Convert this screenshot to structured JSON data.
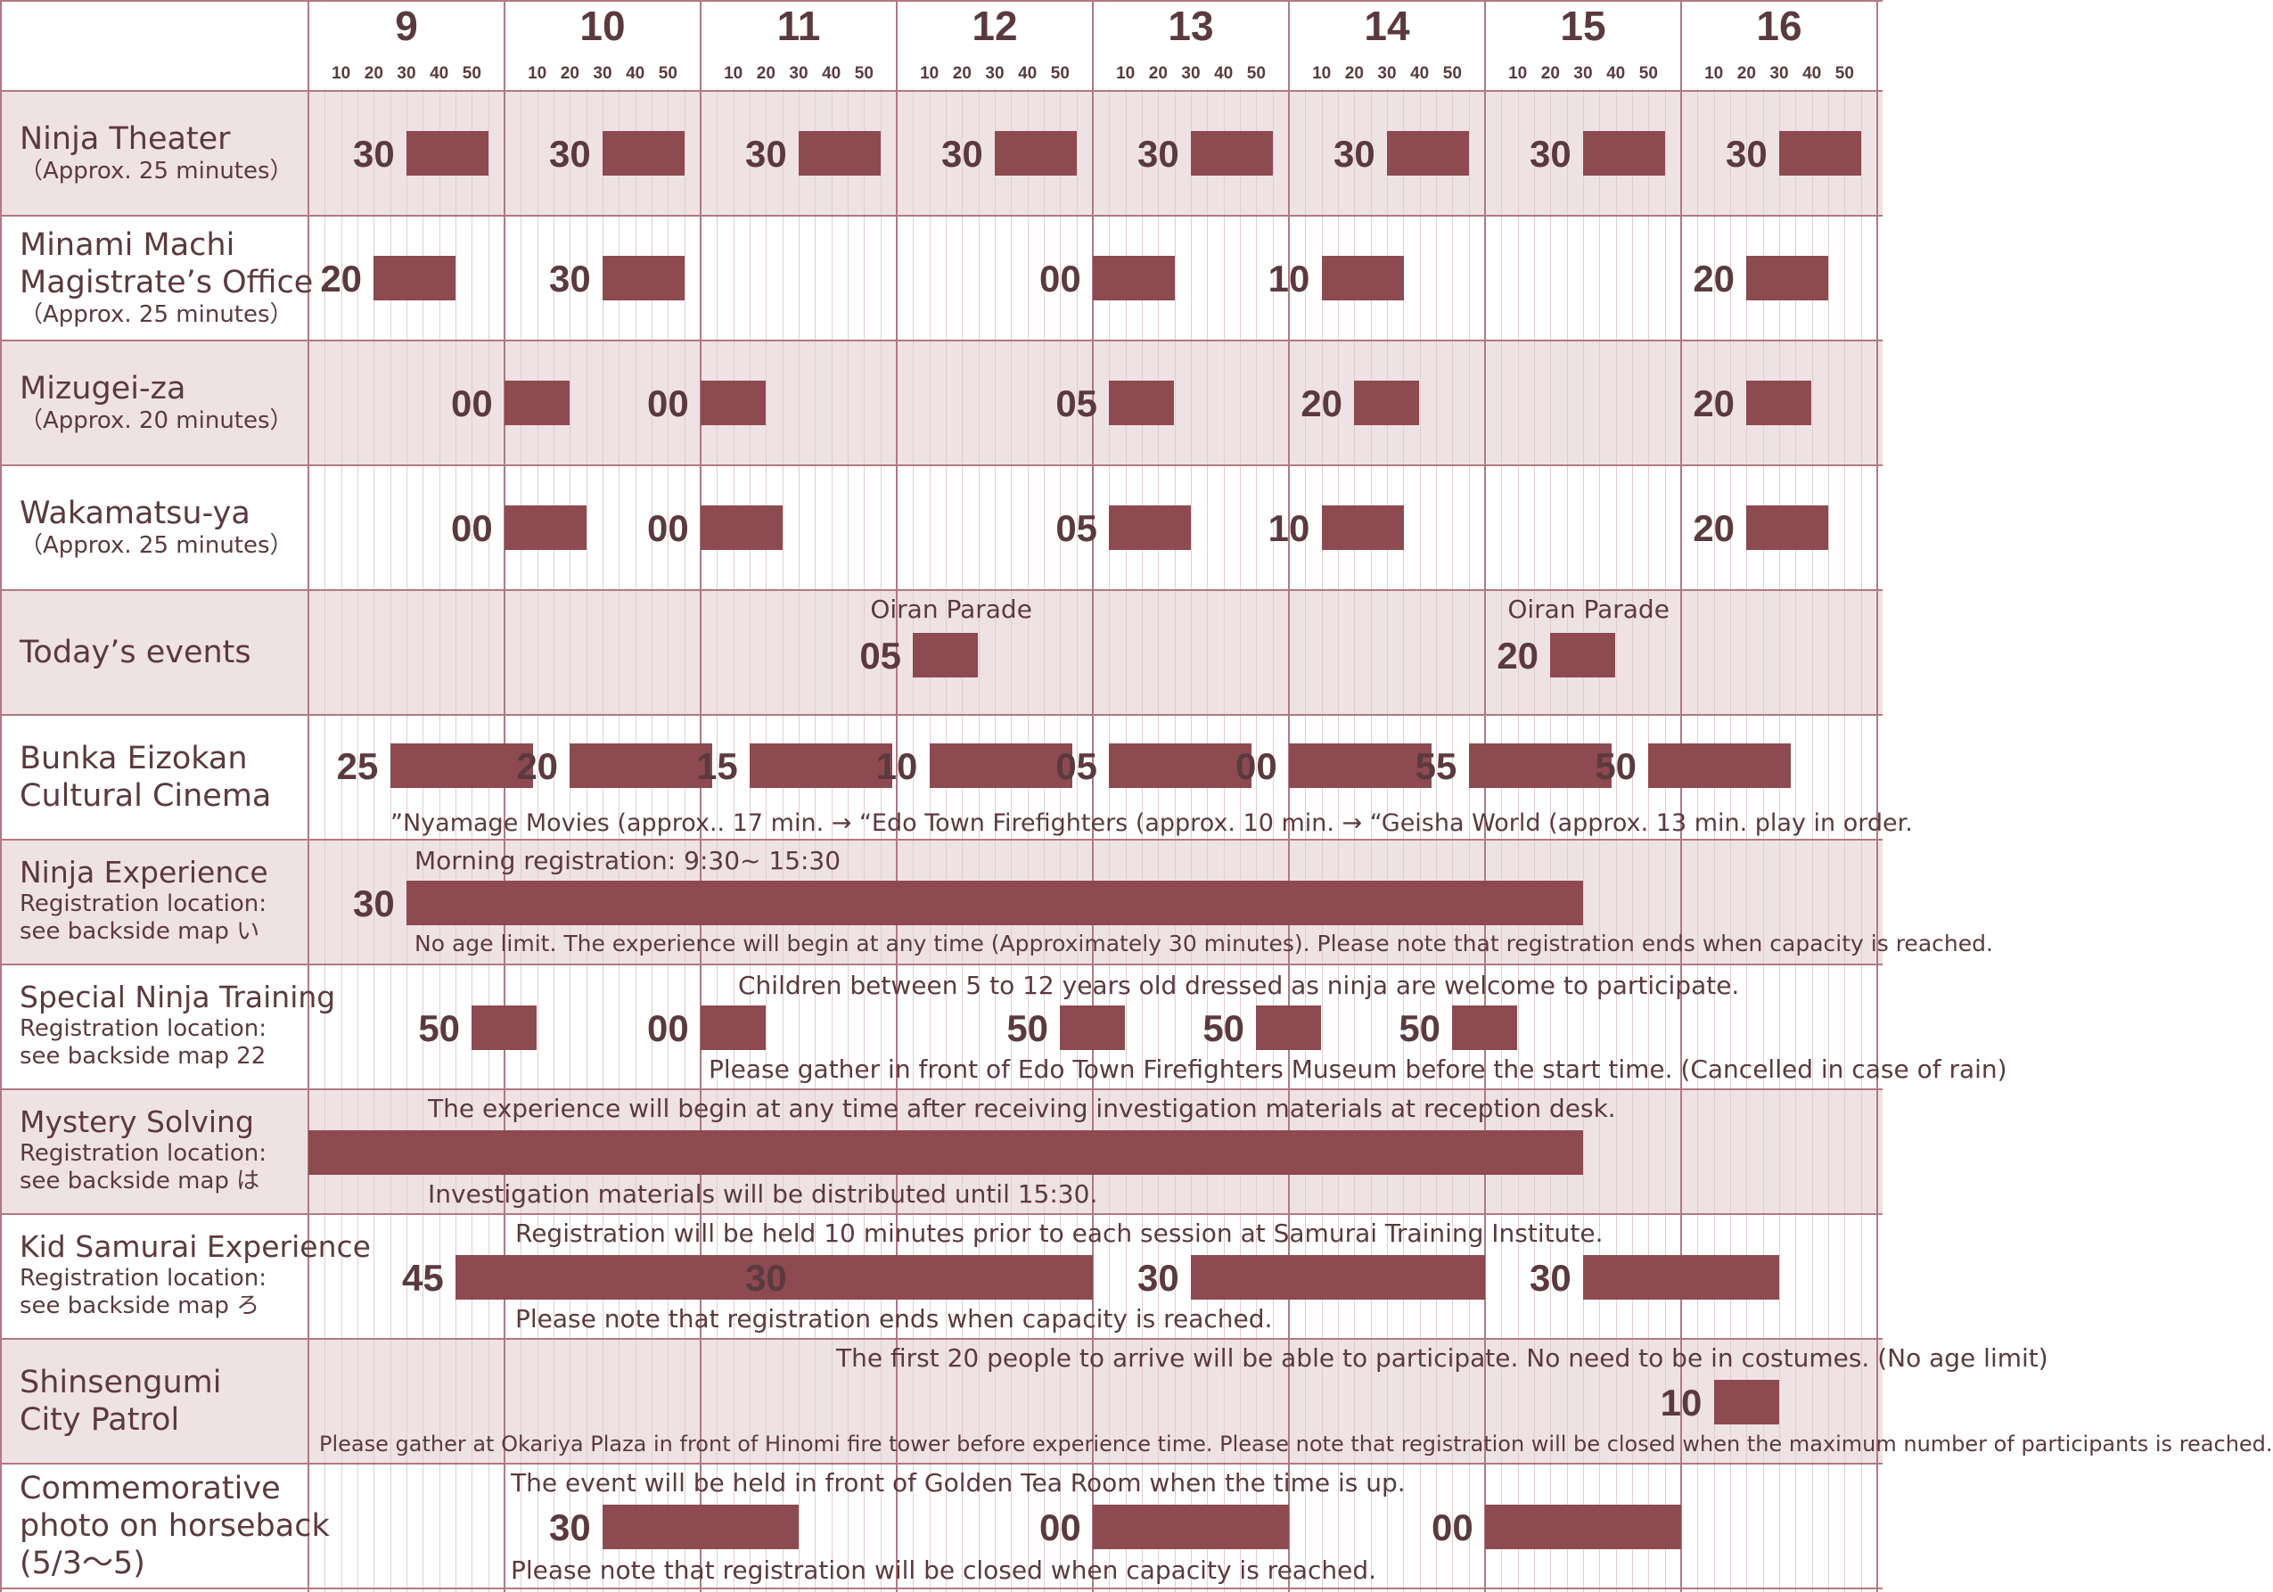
{
  "header": {
    "hours": [
      "9",
      "10",
      "11",
      "12",
      "13",
      "14",
      "15",
      "16"
    ],
    "minute_labels": [
      "10",
      "20",
      "30",
      "40",
      "50"
    ]
  },
  "rows": [
    {
      "title": "Ninja Theater",
      "sub": [
        "（Approx. 25 minutes）"
      ],
      "shaded": true,
      "sessions": [
        {
          "label": "30",
          "start": "9:30"
        },
        {
          "label": "30",
          "start": "10:30"
        },
        {
          "label": "30",
          "start": "11:30"
        },
        {
          "label": "30",
          "start": "12:30"
        },
        {
          "label": "30",
          "start": "13:30"
        },
        {
          "label": "30",
          "start": "14:30"
        },
        {
          "label": "30",
          "start": "15:30"
        },
        {
          "label": "30",
          "start": "16:30"
        }
      ],
      "notes": []
    },
    {
      "title": "Minami Machi\nMagistrate’s Office",
      "sub": [
        "（Approx. 25 minutes）"
      ],
      "shaded": false,
      "sessions": [
        {
          "label": "20",
          "start": "9:20"
        },
        {
          "label": "30",
          "start": "10:30"
        },
        {
          "label": "00",
          "start": "13:00"
        },
        {
          "label": "10",
          "start": "14:10"
        },
        {
          "label": "20",
          "start": "16:20"
        }
      ],
      "notes": []
    },
    {
      "title": "Mizugei-za",
      "sub": [
        "（Approx. 20 minutes）"
      ],
      "shaded": true,
      "sessions": [
        {
          "label": "00",
          "start": "10:00"
        },
        {
          "label": "00",
          "start": "11:00"
        },
        {
          "label": "05",
          "start": "13:05"
        },
        {
          "label": "20",
          "start": "14:20"
        },
        {
          "label": "20",
          "start": "16:20"
        }
      ],
      "notes": []
    },
    {
      "title": "Wakamatsu-ya",
      "sub": [
        "（Approx. 25 minutes）"
      ],
      "shaded": false,
      "sessions": [
        {
          "label": "00",
          "start": "10:00"
        },
        {
          "label": "00",
          "start": "11:00"
        },
        {
          "label": "05",
          "start": "13:05"
        },
        {
          "label": "10",
          "start": "14:10"
        },
        {
          "label": "20",
          "start": "16:20"
        }
      ],
      "notes": []
    },
    {
      "title": "Today’s events",
      "sub": [],
      "shaded": true,
      "sessions": [
        {
          "label": "05",
          "start": "12:05",
          "event": "Oiran Parade"
        },
        {
          "label": "20",
          "start": "15:20",
          "event": "Oiran Parade"
        }
      ],
      "notes": []
    },
    {
      "title": "Bunka Eizokan\nCultural Cinema",
      "sub": [],
      "shaded": false,
      "sessions": [
        {
          "label": "25",
          "start": "9:25"
        },
        {
          "label": "20",
          "start": "10:20"
        },
        {
          "label": "15",
          "start": "11:15"
        },
        {
          "label": "10",
          "start": "12:10"
        },
        {
          "label": "05",
          "start": "13:05"
        },
        {
          "label": "00",
          "start": "14:00"
        },
        {
          "label": "55",
          "start": "14:55"
        },
        {
          "label": "50",
          "start": "15:50"
        }
      ],
      "notes": [
        "”Nyamage Movies (approx.. 17 min. → “Edo Town Firefighters (approx. 10 min. → “Geisha World (approx. 13 min. play in order."
      ]
    },
    {
      "title": "Ninja Experience",
      "sub": [
        "Registration location:",
        "see backside map い"
      ],
      "shaded": true,
      "sessions": [
        {
          "label": "30",
          "start": "9:30",
          "end": "15:30"
        }
      ],
      "notes": [
        "Morning registration: 9:30~ 15:30",
        "No age limit. The experience will begin at any time (Approximately 30 minutes). Please note that registration ends when capacity is reached."
      ]
    },
    {
      "title": "Special Ninja Training",
      "sub": [
        "Registration location:",
        "see backside map 22"
      ],
      "shaded": false,
      "sessions": [
        {
          "label": "50",
          "start": "9:50"
        },
        {
          "label": "00",
          "start": "11:00"
        },
        {
          "label": "50",
          "start": "12:50"
        },
        {
          "label": "50",
          "start": "13:50"
        },
        {
          "label": "50",
          "start": "14:50"
        }
      ],
      "notes": [
        "Children between 5 to 12 years old dressed as ninja are welcome to participate.",
        "Please gather in front of Edo Town Firefighters Museum before the start time. (Cancelled in case of rain)"
      ]
    },
    {
      "title": "Mystery Solving",
      "sub": [
        "Registration location:",
        "see backside map は"
      ],
      "shaded": true,
      "sessions": [
        {
          "label": "",
          "start": "9:00",
          "end": "15:30"
        }
      ],
      "notes": [
        "The experience will begin at any time after receiving investigation materials at reception desk.",
        "Investigation materials will be distributed until 15:30."
      ]
    },
    {
      "title": "Kid Samurai Experience",
      "sub": [
        "Registration location:",
        "see backside map ろ"
      ],
      "shaded": false,
      "sessions": [
        {
          "label": "45",
          "start": "9:45",
          "end": "11:30"
        },
        {
          "label": "30",
          "start": "11:30",
          "end": "13:00"
        },
        {
          "label": "30",
          "start": "13:30",
          "end": "15:00"
        },
        {
          "label": "30",
          "start": "15:30",
          "end": "16:30"
        }
      ],
      "notes": [
        "Registration will be held 10 minutes prior to each session at Samurai Training Institute.",
        "Please note that registration ends when capacity is reached."
      ]
    },
    {
      "title": "Shinsengumi\nCity Patrol",
      "sub": [],
      "shaded": true,
      "sessions": [
        {
          "label": "10",
          "start": "16:10"
        }
      ],
      "notes": [
        "The first 20 people to arrive will be able to participate. No need to be in costumes. (No age limit)",
        "Please gather at Okariya Plaza in front of Hinomi fire tower before experience time. Please note that registration will be closed when the maximum number of participants is reached."
      ]
    },
    {
      "title": "Commemorative\nphoto on horseback\n(5/3〜5)",
      "sub": [],
      "shaded": false,
      "sessions": [
        {
          "label": "30",
          "start": "10:30",
          "end": "11:30"
        },
        {
          "label": "00",
          "start": "13:00",
          "end": "14:00"
        },
        {
          "label": "00",
          "start": "15:00",
          "end": "16:00"
        }
      ],
      "notes": [
        "The event will be held in front of Golden Tea Room when the time is up.",
        "Please note that registration will be closed when capacity is reached."
      ]
    }
  ],
  "colors": {
    "bar": "#8d4a51",
    "shade": "#efe2e4",
    "line": "#b07a82",
    "text": "#5a3a3f"
  }
}
